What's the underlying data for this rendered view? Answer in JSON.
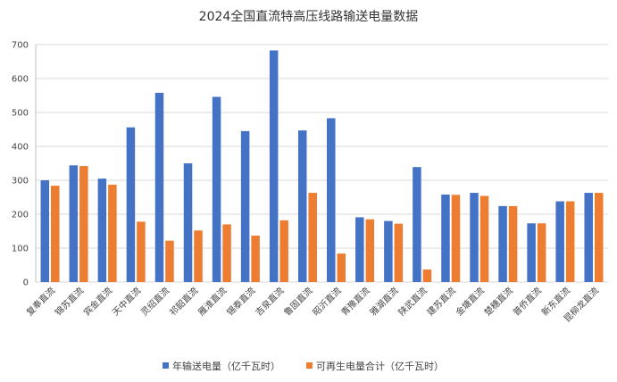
{
  "chart_data": {
    "type": "bar",
    "title": "2024全国直流特高压线路输送电量数据",
    "categories": [
      "复奉直流",
      "锦苏直流",
      "宾金直流",
      "天中直流",
      "灵绍直流",
      "祁韶直流",
      "雁淮直流",
      "锡泰直流",
      "吉泉直流",
      "鲁固直流",
      "昭沂直流",
      "青豫直流",
      "雅湖直流",
      "陕武直流",
      "建苏直流",
      "金塘直流",
      "楚穗直流",
      "普侨直流",
      "新东直流",
      "昆柳龙直流"
    ],
    "series": [
      {
        "name": "年输送电量（亿千瓦时）",
        "color": "#4472C4",
        "values": [
          300,
          344,
          305,
          456,
          558,
          350,
          546,
          445,
          683,
          447,
          483,
          191,
          180,
          339,
          258,
          263,
          224,
          173,
          238,
          263
        ]
      },
      {
        "name": "可再生电量合计（亿千瓦时）",
        "color": "#ED7D31",
        "values": [
          284,
          342,
          287,
          178,
          122,
          152,
          170,
          137,
          182,
          263,
          84,
          185,
          172,
          37,
          257,
          254,
          224,
          173,
          238,
          263
        ]
      }
    ],
    "ylim": [
      0,
      700
    ],
    "yticks": [
      "0",
      "100",
      "200",
      "300",
      "400",
      "500",
      "600",
      "700"
    ],
    "grid": true,
    "legend_position": "bottom"
  }
}
